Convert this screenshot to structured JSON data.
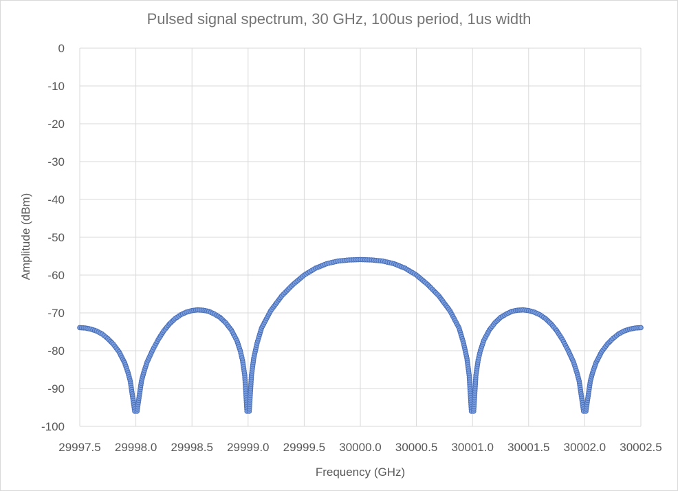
{
  "chart_data": {
    "type": "scatter",
    "title": "Pulsed signal spectrum, 30 GHz, 100us period, 1us width",
    "xlabel": "Frequency (GHz)",
    "ylabel": "Amplitude (dBm)",
    "xlim": [
      29997.5,
      30002.5
    ],
    "ylim": [
      -100,
      0
    ],
    "xticks": [
      "29997.5",
      "29998.0",
      "29998.5",
      "29999.0",
      "29999.5",
      "30000.0",
      "30000.5",
      "30001.0",
      "30001.5",
      "30002.0",
      "30002.5"
    ],
    "yticks": [
      "0",
      "-10",
      "-20",
      "-30",
      "-40",
      "-50",
      "-60",
      "-70",
      "-80",
      "-90",
      "-100"
    ],
    "grid": true,
    "legend": "none",
    "series": [
      {
        "color": "#7a9ee0",
        "edge_color": "#4a6fb5",
        "points": [
          [
            29997.5,
            -73.9
          ],
          [
            29997.55,
            -74.0
          ],
          [
            29997.6,
            -74.3
          ],
          [
            29997.65,
            -74.8
          ],
          [
            29997.7,
            -75.6
          ],
          [
            29997.75,
            -76.8
          ],
          [
            29997.8,
            -78.3
          ],
          [
            29997.85,
            -80.3
          ],
          [
            29997.9,
            -83.2
          ],
          [
            29997.93,
            -85.8
          ],
          [
            29997.95,
            -88.0
          ],
          [
            29997.97,
            -92.0
          ],
          [
            29997.99,
            -96.0
          ],
          [
            29998.01,
            -96.0
          ],
          [
            29998.03,
            -92.0
          ],
          [
            29998.05,
            -88.0
          ],
          [
            29998.07,
            -85.8
          ],
          [
            29998.1,
            -83.0
          ],
          [
            29998.15,
            -79.8
          ],
          [
            29998.2,
            -77.0
          ],
          [
            29998.25,
            -74.7
          ],
          [
            29998.3,
            -72.9
          ],
          [
            29998.35,
            -71.5
          ],
          [
            29998.4,
            -70.5
          ],
          [
            29998.45,
            -69.8
          ],
          [
            29998.5,
            -69.4
          ],
          [
            29998.55,
            -69.2
          ],
          [
            29998.6,
            -69.3
          ],
          [
            29998.65,
            -69.6
          ],
          [
            29998.7,
            -70.3
          ],
          [
            29998.75,
            -71.2
          ],
          [
            29998.8,
            -72.6
          ],
          [
            29998.85,
            -74.5
          ],
          [
            29998.9,
            -77.3
          ],
          [
            29998.93,
            -80.0
          ],
          [
            29998.95,
            -82.5
          ],
          [
            29998.97,
            -86.5
          ],
          [
            29998.99,
            -96.0
          ],
          [
            29999.01,
            -96.0
          ],
          [
            29999.03,
            -86.5
          ],
          [
            29999.05,
            -82.0
          ],
          [
            29999.08,
            -78.0
          ],
          [
            29999.12,
            -74.0
          ],
          [
            29999.2,
            -69.5
          ],
          [
            29999.3,
            -65.5
          ],
          [
            29999.4,
            -62.5
          ],
          [
            29999.5,
            -60.0
          ],
          [
            29999.6,
            -58.2
          ],
          [
            29999.7,
            -57.0
          ],
          [
            29999.8,
            -56.3
          ],
          [
            29999.9,
            -56.0
          ],
          [
            30000.0,
            -55.9
          ],
          [
            30000.1,
            -56.0
          ],
          [
            30000.2,
            -56.3
          ],
          [
            30000.3,
            -57.0
          ],
          [
            30000.4,
            -58.2
          ],
          [
            30000.5,
            -60.0
          ],
          [
            30000.6,
            -62.5
          ],
          [
            30000.7,
            -65.5
          ],
          [
            30000.8,
            -69.5
          ],
          [
            30000.88,
            -74.0
          ],
          [
            30000.92,
            -78.0
          ],
          [
            30000.95,
            -82.0
          ],
          [
            30000.97,
            -86.5
          ],
          [
            30000.99,
            -96.0
          ],
          [
            30001.01,
            -96.0
          ],
          [
            30001.03,
            -86.5
          ],
          [
            30001.05,
            -82.5
          ],
          [
            30001.07,
            -80.0
          ],
          [
            30001.1,
            -77.3
          ],
          [
            30001.15,
            -74.5
          ],
          [
            30001.2,
            -72.6
          ],
          [
            30001.25,
            -71.2
          ],
          [
            30001.3,
            -70.3
          ],
          [
            30001.35,
            -69.6
          ],
          [
            30001.4,
            -69.3
          ],
          [
            30001.45,
            -69.2
          ],
          [
            30001.5,
            -69.4
          ],
          [
            30001.55,
            -69.8
          ],
          [
            30001.6,
            -70.5
          ],
          [
            30001.65,
            -71.5
          ],
          [
            30001.7,
            -72.9
          ],
          [
            30001.75,
            -74.7
          ],
          [
            30001.8,
            -77.0
          ],
          [
            30001.85,
            -79.8
          ],
          [
            30001.9,
            -83.0
          ],
          [
            30001.93,
            -85.8
          ],
          [
            30001.95,
            -88.0
          ],
          [
            30001.97,
            -92.0
          ],
          [
            30001.99,
            -96.0
          ],
          [
            30002.01,
            -96.0
          ],
          [
            30002.03,
            -92.0
          ],
          [
            30002.05,
            -88.0
          ],
          [
            30002.07,
            -85.8
          ],
          [
            30002.1,
            -83.2
          ],
          [
            30002.15,
            -80.3
          ],
          [
            30002.2,
            -78.3
          ],
          [
            30002.25,
            -76.8
          ],
          [
            30002.3,
            -75.6
          ],
          [
            30002.35,
            -74.8
          ],
          [
            30002.4,
            -74.3
          ],
          [
            30002.45,
            -74.0
          ],
          [
            30002.5,
            -73.9
          ]
        ]
      }
    ]
  }
}
